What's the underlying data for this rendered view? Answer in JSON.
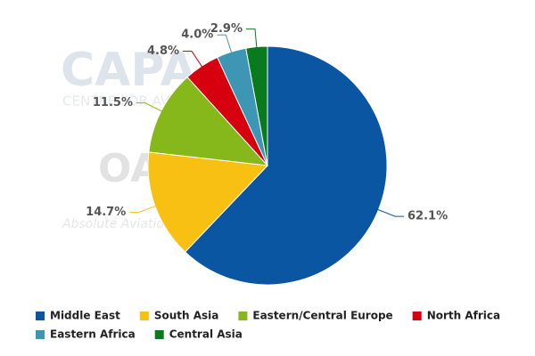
{
  "chart_data": {
    "type": "pie",
    "categories": [
      "Middle East",
      "South Asia",
      "Eastern/Central Europe",
      "North Africa",
      "Eastern Africa",
      "Central Asia"
    ],
    "values": [
      62.1,
      14.7,
      11.5,
      4.8,
      4.0,
      2.9
    ],
    "value_labels": [
      "62.1%",
      "14.7%",
      "11.5%",
      "4.8%",
      "4.0%",
      "2.9%"
    ],
    "colors": [
      "#0a56a3",
      "#f8c012",
      "#86b81c",
      "#d7000f",
      "#3c96b4",
      "#0a7a1e"
    ],
    "watermarks": [
      "CAPA",
      "CENTRE FOR AVIATION",
      "OAG",
      "Absolute Aviation Data"
    ]
  }
}
